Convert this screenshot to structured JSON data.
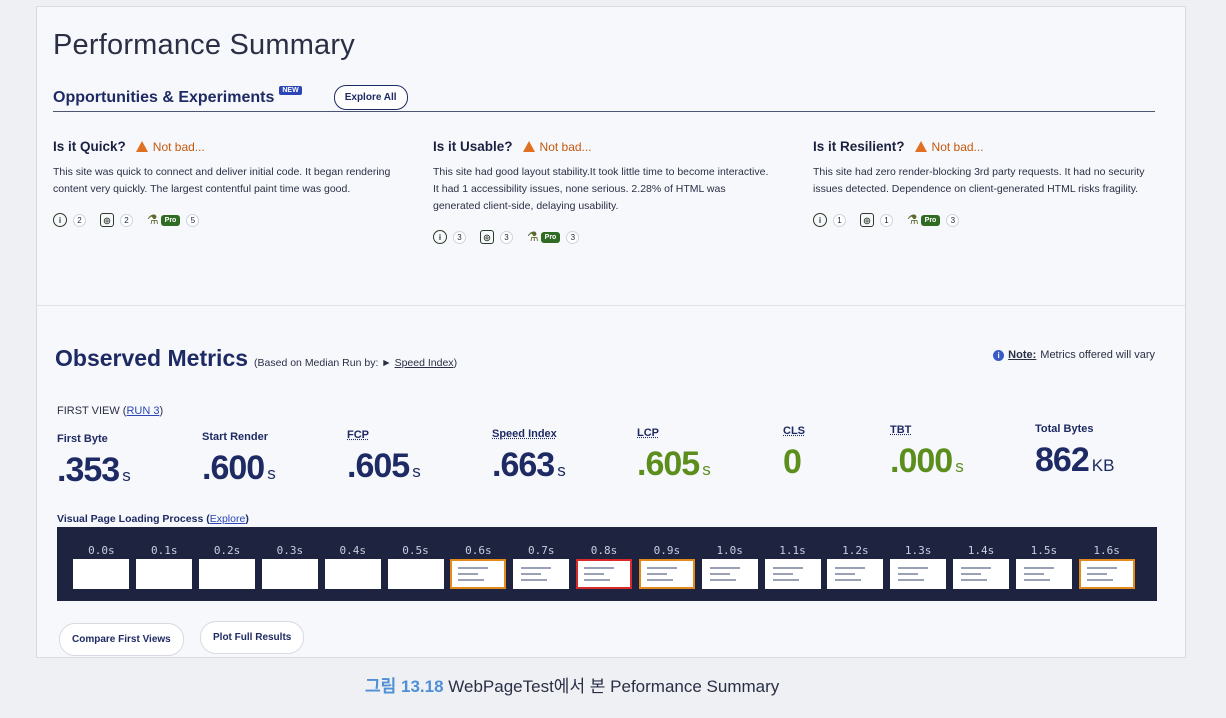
{
  "title": "Performance Summary",
  "opportunities": {
    "title": "Opportunities & Experiments",
    "badge": "NEW",
    "explore_all": "Explore All"
  },
  "columns": [
    {
      "heading": "Is it Quick?",
      "status": "Not bad...",
      "text": "This site was quick to connect and deliver initial code. It began rendering content very quickly. The largest contentful paint time was good.",
      "counts": [
        "2",
        "2",
        "5"
      ]
    },
    {
      "heading": "Is it Usable?",
      "status": "Not bad...",
      "text": "This site had good layout stability.It took little time to become interactive. It had 1 accessibility issues, none serious. 2.28% of HTML was generated client-side, delaying usability.",
      "counts": [
        "3",
        "3",
        "3"
      ]
    },
    {
      "heading": "Is it Resilient?",
      "status": "Not bad...",
      "text": "This site had zero render-blocking 3rd party requests. It had no security issues detected. Dependence on client-generated HTML risks fragility.",
      "counts": [
        "1",
        "1",
        "3"
      ]
    }
  ],
  "pro_label": "Pro",
  "observed": {
    "title": "Observed Metrics",
    "sub_prefix": "(Based on Median Run by: ► ",
    "sub_link": "Speed Index",
    "sub_suffix": ")",
    "note_label": "Note:",
    "note_text": "Metrics offered will vary",
    "first_view_prefix": "FIRST VIEW (",
    "first_view_link": "RUN 3",
    "first_view_suffix": ")"
  },
  "metrics": [
    {
      "label": "First Byte",
      "value": ".353",
      "unit": "s",
      "color": "#1e2a63"
    },
    {
      "label": "Start Render",
      "value": ".600",
      "unit": "s",
      "color": "#1e2a63"
    },
    {
      "label": "FCP",
      "value": ".605",
      "unit": "s",
      "color": "#1e2a63"
    },
    {
      "label": "Speed Index",
      "value": ".663",
      "unit": "s",
      "color": "#1e2a63"
    },
    {
      "label": "LCP",
      "value": ".605",
      "unit": "s",
      "color": "#5b8e1c"
    },
    {
      "label": "CLS",
      "value": "0",
      "unit": "",
      "color": "#5b8e1c"
    },
    {
      "label": "TBT",
      "value": ".000",
      "unit": "s",
      "color": "#5b8e1c"
    },
    {
      "label": "Total Bytes",
      "value": "862",
      "unit": "KB",
      "color": "#1e2a63"
    }
  ],
  "visual_progress": {
    "label": "Visual Page Loading Process",
    "link": "Explore",
    "frames": [
      {
        "time": "0.0s",
        "state": "blank"
      },
      {
        "time": "0.1s",
        "state": "blank"
      },
      {
        "time": "0.2s",
        "state": "blank"
      },
      {
        "time": "0.3s",
        "state": "blank"
      },
      {
        "time": "0.4s",
        "state": "blank"
      },
      {
        "time": "0.5s",
        "state": "blank"
      },
      {
        "time": "0.6s",
        "state": "orange"
      },
      {
        "time": "0.7s",
        "state": "content"
      },
      {
        "time": "0.8s",
        "state": "red"
      },
      {
        "time": "0.9s",
        "state": "orange"
      },
      {
        "time": "1.0s",
        "state": "content"
      },
      {
        "time": "1.1s",
        "state": "content"
      },
      {
        "time": "1.2s",
        "state": "content"
      },
      {
        "time": "1.3s",
        "state": "content"
      },
      {
        "time": "1.4s",
        "state": "content"
      },
      {
        "time": "1.5s",
        "state": "content"
      },
      {
        "time": "1.6s",
        "state": "orange"
      }
    ]
  },
  "buttons": {
    "compare": "Compare First Views",
    "plot": "Plot Full Results"
  },
  "caption": {
    "number": "그림 13.18",
    "text": " WebPageTest에서 본 Peformance Summary"
  }
}
